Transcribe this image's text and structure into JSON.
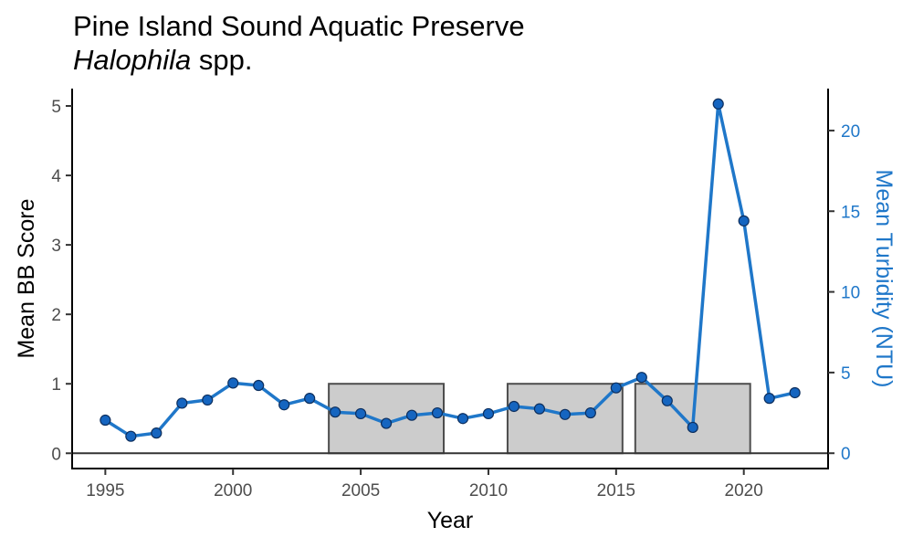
{
  "chart_data": {
    "type": "bar+line",
    "title": "Pine Island Sound Aquatic Preserve",
    "subtitle_italic": "Halophila",
    "subtitle_rest": " spp.",
    "xlabel": "Year",
    "ylabel": "Mean BB Score",
    "y2label": "Mean Turbidity (NTU)",
    "xlim": [
      1993.7,
      2023.3
    ],
    "ylim": [
      -0.22,
      5.25
    ],
    "y2lim": [
      -0.95,
      22.6
    ],
    "x_ticks": [
      1995,
      2000,
      2005,
      2010,
      2015,
      2020
    ],
    "y_ticks": [
      0,
      1,
      2,
      3,
      4,
      5
    ],
    "y2_ticks": [
      0,
      5,
      10,
      15,
      20
    ],
    "grid": false,
    "bars": {
      "name": "Mean BB Score",
      "color": "#cccccc",
      "edge_color": "#4d4d4d",
      "width_years": 4.5,
      "x": [
        2006,
        2013,
        2018
      ],
      "values": [
        1,
        1,
        1
      ]
    },
    "line": {
      "name": "Mean Turbidity (NTU)",
      "color": "#1f77c9",
      "point_color": "#1565c0",
      "point_edge": "#0d2f5e",
      "x": [
        1995,
        1996,
        1997,
        1998,
        1999,
        2000,
        2001,
        2002,
        2003,
        2004,
        2005,
        2006,
        2007,
        2008,
        2009,
        2010,
        2011,
        2012,
        2013,
        2014,
        2015,
        2016,
        2017,
        2018,
        2019,
        2020,
        2021,
        2022
      ],
      "values": [
        2.05,
        1.05,
        1.25,
        3.1,
        3.3,
        4.35,
        4.2,
        3.0,
        3.4,
        2.55,
        2.45,
        1.85,
        2.35,
        2.5,
        2.15,
        2.45,
        2.9,
        2.75,
        2.4,
        2.5,
        4.05,
        4.7,
        3.25,
        1.6,
        21.65,
        14.4,
        3.4,
        3.75
      ]
    }
  }
}
